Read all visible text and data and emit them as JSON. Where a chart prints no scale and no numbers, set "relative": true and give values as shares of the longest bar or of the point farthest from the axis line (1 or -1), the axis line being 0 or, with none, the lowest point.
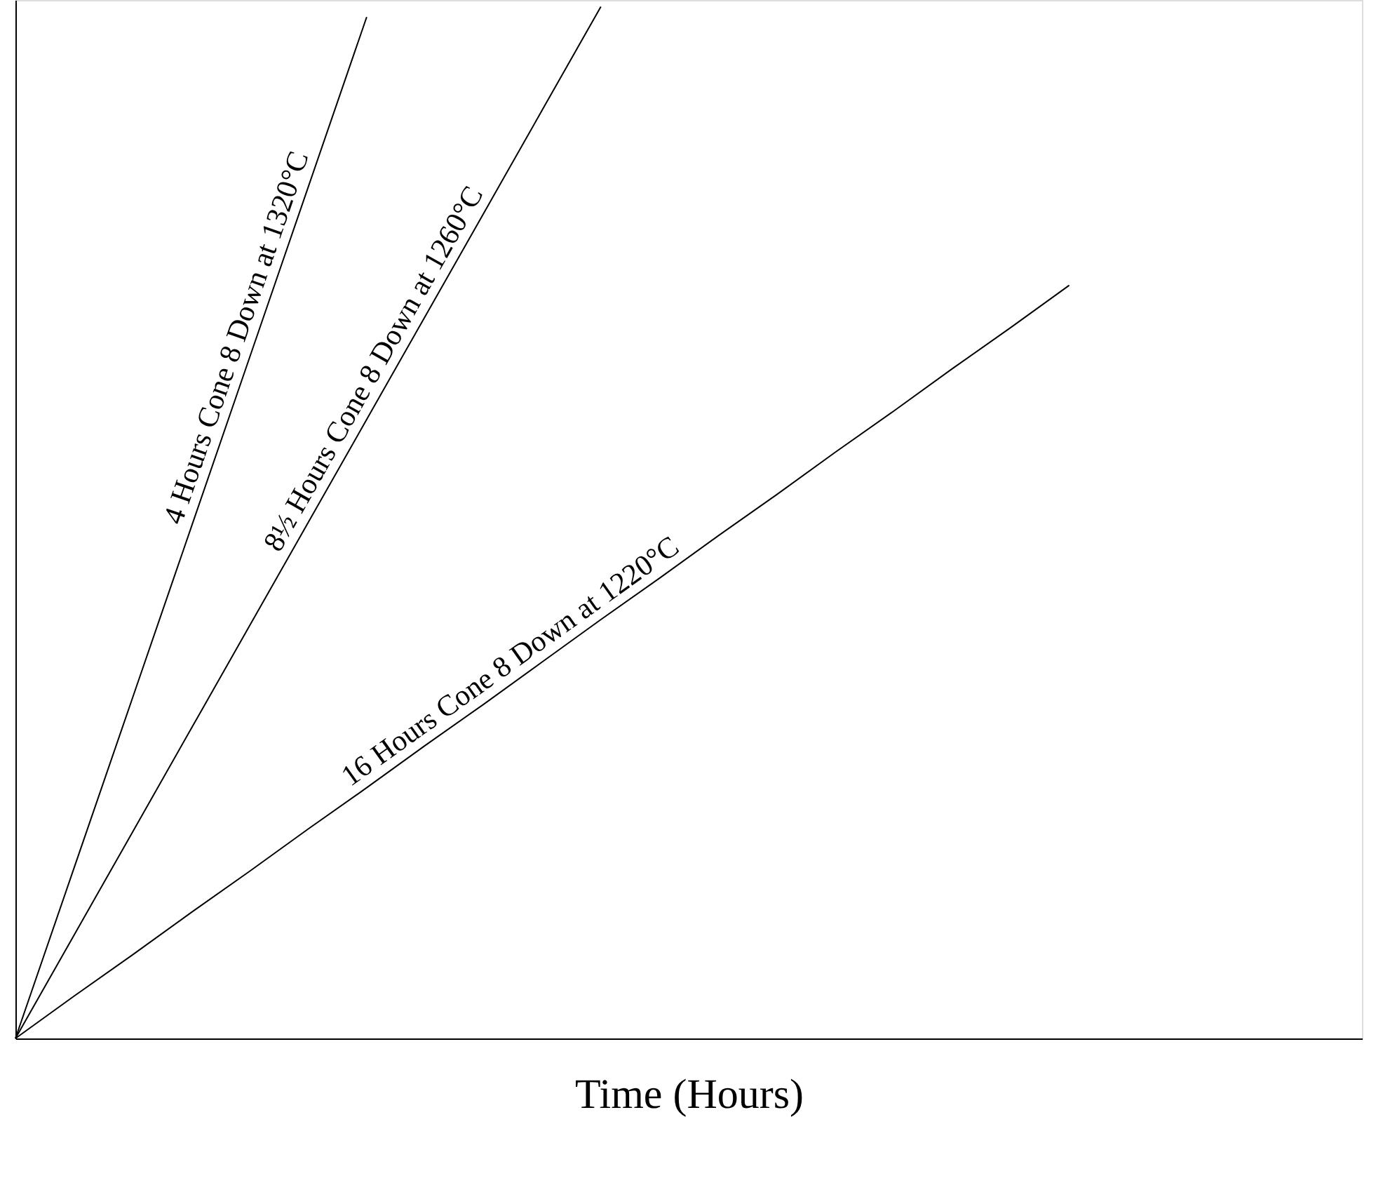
{
  "chart_data": {
    "type": "line",
    "relative": true,
    "xlabel": "Time (Hours)",
    "tick_labels": false,
    "grid": false,
    "legend": false,
    "marker": "none",
    "line_style": "solid",
    "categories": [
      null,
      null,
      null,
      null,
      null,
      null,
      null,
      null,
      null,
      null,
      null,
      null,
      null,
      null,
      null,
      null,
      null,
      null,
      null,
      null,
      null,
      null,
      null,
      null
    ],
    "series": [
      {
        "name": "4 Hours Cone 8 Down at 1320°C",
        "color": "#000000",
        "values": [
          0,
          0.165,
          0.33,
          0.495,
          0.66,
          0.825,
          0.99,
          null,
          null,
          null,
          null,
          null,
          null,
          null,
          null,
          null,
          null,
          null,
          null,
          null,
          null,
          null,
          null,
          null
        ]
      },
      {
        "name": "8½ Hours Cone 8 Down at 1260°C",
        "color": "#000000",
        "values": [
          0,
          0.1,
          0.2,
          0.3,
          0.4,
          0.5,
          0.6,
          0.7,
          0.8,
          0.9,
          1,
          null,
          null,
          null,
          null,
          null,
          null,
          null,
          null,
          null,
          null,
          null,
          null,
          null
        ]
      },
      {
        "name": "16 Hours Cone 8 Down at 1220°C",
        "color": "#000000",
        "values": [
          0,
          0.041,
          0.081,
          0.122,
          0.162,
          0.203,
          0.243,
          0.284,
          0.324,
          0.365,
          0.406,
          0.446,
          0.487,
          0.527,
          0.568,
          0.608,
          0.649,
          0.689,
          0.73,
          null,
          null,
          null,
          null,
          null
        ]
      }
    ]
  }
}
